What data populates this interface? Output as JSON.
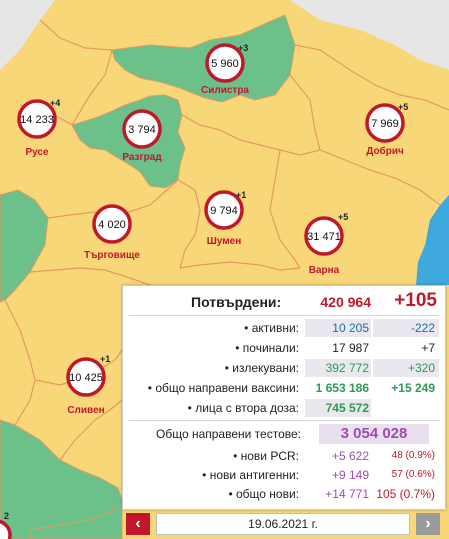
{
  "colors": {
    "yellow": "#f7d778",
    "green": "#6cc08a",
    "border": "#e39a63",
    "accent": "#c0182a",
    "sea": "#3fa8dc"
  },
  "regions": [
    {
      "id": "silistra",
      "name": "Силистра",
      "value": "5 960",
      "delta": "+3"
    },
    {
      "id": "ruse",
      "name": "Русе",
      "value": "14 233",
      "delta": "+4"
    },
    {
      "id": "razgrad",
      "name": "Разград",
      "value": "3 794",
      "delta": ""
    },
    {
      "id": "dobrich",
      "name": "Добрич",
      "value": "7 969",
      "delta": "+5"
    },
    {
      "id": "targovishte",
      "name": "Търговище",
      "value": "4 020",
      "delta": ""
    },
    {
      "id": "shumen",
      "name": "Шумен",
      "value": "9 794",
      "delta": "+1"
    },
    {
      "id": "varna",
      "name": "Варна",
      "value": "31 471",
      "delta": "+5"
    },
    {
      "id": "sliven",
      "name": "Сливен",
      "value": "10 425",
      "delta": "+1"
    }
  ],
  "edge_marker": "2",
  "stats": {
    "confirmed": {
      "label": "Потвърдени:",
      "value": "420 964",
      "delta": "+105"
    },
    "rows": [
      {
        "label": "• активни:",
        "value": "10 205",
        "delta": "-222",
        "vcolor": "#1f6fa8",
        "dcolor": "#1f6fa8"
      },
      {
        "label": "• починали:",
        "value": "17 987",
        "delta": "+7",
        "vcolor": "#222222",
        "dcolor": "#222222"
      },
      {
        "label": "• излекувани:",
        "value": "392 772",
        "delta": "+320",
        "vcolor": "#2e9a54",
        "dcolor": "#2e9a54"
      },
      {
        "label": "• общо направени ваксини:",
        "value": "1 653 186",
        "delta": "+15 249",
        "vcolor": "#2e9a54",
        "dcolor": "#2e9a54"
      },
      {
        "label": "• лица с втора доза:",
        "value": "745 572",
        "delta": "",
        "vcolor": "#2e9a54",
        "dcolor": "#2e9a54"
      }
    ],
    "tests_total": {
      "label": "Общо направени тестове:",
      "value": "3 054 028"
    },
    "tests_rows": [
      {
        "label": "• нови PCR:",
        "value": "+5 622",
        "delta": "48 (0.9%)"
      },
      {
        "label": "• нови антигенни:",
        "value": "+9 149",
        "delta": "57 (0.6%)"
      },
      {
        "label": "• общо нови:",
        "value": "+14 771",
        "delta": "105 (0.7%)"
      }
    ]
  },
  "nav": {
    "date": "19.06.2021 г.",
    "prev": "‹",
    "next": "›"
  }
}
